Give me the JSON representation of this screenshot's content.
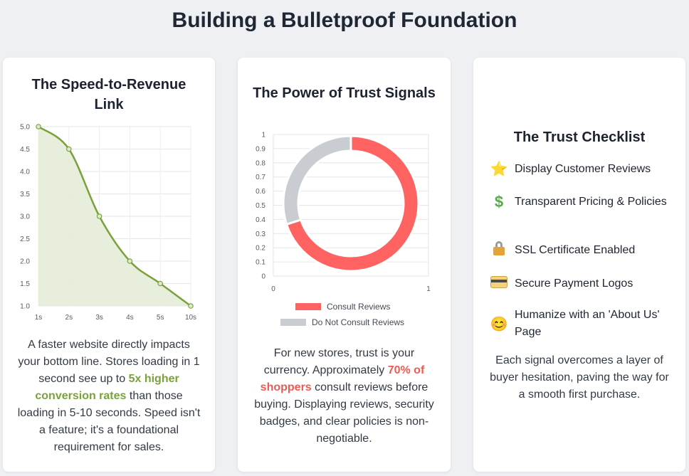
{
  "page": {
    "title": "Building a Bulletproof Foundation"
  },
  "card1": {
    "title": "The Speed-to-Revenue Link",
    "text_before": "A faster website directly impacts your bottom line. Stores loading in 1 second see up to ",
    "highlight": "5x higher conversion rates",
    "text_after": " than those loading in 5-10 seconds. Speed isn't a feature; it's a foundational requirement for sales."
  },
  "card2": {
    "title": "The Power of Trust Signals",
    "text_before": "For new stores, trust is your currency. Approximately ",
    "highlight": "70% of shoppers",
    "text_after": " consult reviews before buying. Displaying reviews, security badges, and clear policies is non-negotiable."
  },
  "card3": {
    "title": "The Trust Checklist",
    "items": [
      {
        "label": "Display Customer Reviews",
        "icon": "star-icon"
      },
      {
        "label": "Transparent Pricing & Policies",
        "icon": "dollar-icon"
      },
      {
        "label": "SSL Certificate Enabled",
        "icon": "lock-icon"
      },
      {
        "label": "Secure Payment Logos",
        "icon": "credit-card-icon"
      },
      {
        "label": "Humanize with an 'About Us' Page",
        "icon": "smiley-icon"
      }
    ],
    "footer": "Each signal overcomes a layer of buyer hesitation, paving the way for a smooth first purchase."
  },
  "chart_data": [
    {
      "type": "area",
      "title": "The Speed-to-Revenue Link",
      "x": [
        "1s",
        "2s",
        "3s",
        "4s",
        "5s",
        "10s"
      ],
      "series": [
        {
          "values": [
            5.0,
            4.5,
            3.0,
            2.0,
            1.5,
            1.0
          ]
        }
      ],
      "y_ticks": [
        "5.0",
        "4.5",
        "4.0",
        "3.5",
        "3.0",
        "2.5",
        "2.0",
        "1.5",
        "1.0"
      ],
      "ylim": [
        1.0,
        5.0
      ],
      "grid": true,
      "colors": {
        "line": "#7aa23b",
        "fill": "#e4ecd7"
      }
    },
    {
      "type": "pie",
      "style": "doughnut",
      "title": "The Power of Trust Signals",
      "labels": [
        "Consult Reviews",
        "Do Not Consult Reviews"
      ],
      "values": [
        70,
        30
      ],
      "colors": [
        "#ff6361",
        "#c9ccd1"
      ],
      "y_ticks": [
        "1",
        "0.9",
        "0.8",
        "0.7",
        "0.6",
        "0.5",
        "0.4",
        "0.3",
        "0.2",
        "0.1",
        "0"
      ],
      "x_ticks": [
        "0",
        "1"
      ],
      "legend_position": "bottom"
    }
  ]
}
